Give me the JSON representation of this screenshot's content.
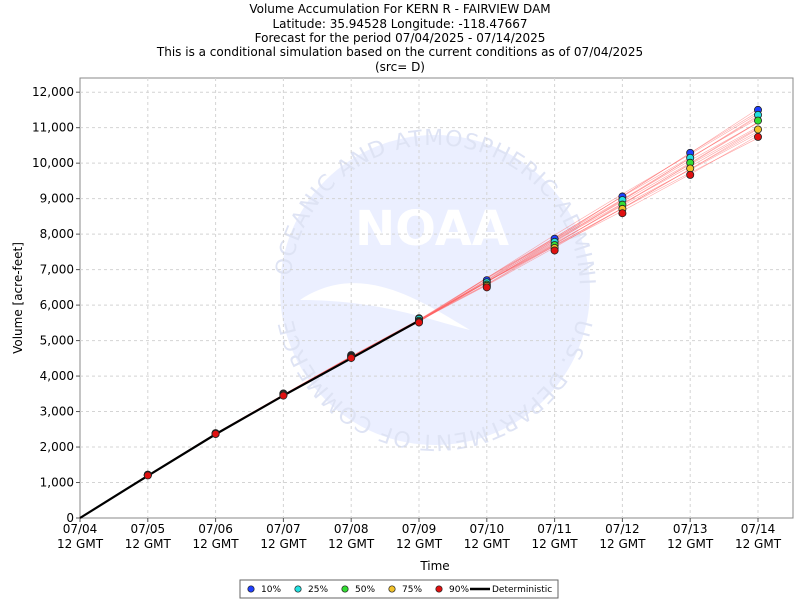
{
  "chart_data": {
    "type": "line",
    "title_lines": [
      "Volume Accumulation For KERN R - FAIRVIEW DAM",
      "Latitude: 35.94528 Longitude: -118.47667",
      "Forecast for the period 07/04/2025 - 07/14/2025",
      "This is a conditional simulation based on the current conditions as of 07/04/2025",
      "(src= D)"
    ],
    "xlabel": "Time",
    "ylabel": "Volume [acre-feet]",
    "ylim": [
      0,
      12400
    ],
    "yticks": [
      0,
      1000,
      2000,
      3000,
      4000,
      5000,
      6000,
      7000,
      8000,
      9000,
      10000,
      11000,
      12000
    ],
    "ytick_labels": [
      "0",
      "1,000",
      "2,000",
      "3,000",
      "4,000",
      "5,000",
      "6,000",
      "7,000",
      "8,000",
      "9,000",
      "10,000",
      "11,000",
      "12,000"
    ],
    "xticks": [
      {
        "date": "07/04",
        "time": "12 GMT"
      },
      {
        "date": "07/05",
        "time": "12 GMT"
      },
      {
        "date": "07/06",
        "time": "12 GMT"
      },
      {
        "date": "07/07",
        "time": "12 GMT"
      },
      {
        "date": "07/08",
        "time": "12 GMT"
      },
      {
        "date": "07/09",
        "time": "12 GMT"
      },
      {
        "date": "07/10",
        "time": "12 GMT"
      },
      {
        "date": "07/11",
        "time": "12 GMT"
      },
      {
        "date": "07/12",
        "time": "12 GMT"
      },
      {
        "date": "07/13",
        "time": "12 GMT"
      },
      {
        "date": "07/14",
        "time": "12 GMT"
      }
    ],
    "x": [
      "07/04 12 GMT",
      "07/05 12 GMT",
      "07/06 12 GMT",
      "07/07 12 GMT",
      "07/08 12 GMT",
      "07/09 12 GMT",
      "07/10 12 GMT",
      "07/11 12 GMT",
      "07/12 12 GMT",
      "07/13 12 GMT",
      "07/14 12 GMT"
    ],
    "grid": true,
    "legend_position": "bottom-center",
    "series": [
      {
        "name": "10%",
        "color": "#1f3fff",
        "marker": "circle",
        "values": [
          0,
          1220,
          2390,
          3510,
          4590,
          5630,
          6700,
          7870,
          9060,
          10290,
          11500
        ]
      },
      {
        "name": "25%",
        "color": "#22e0e0",
        "marker": "circle",
        "values": [
          0,
          1220,
          2390,
          3500,
          4570,
          5610,
          6640,
          7780,
          8960,
          10150,
          11360
        ]
      },
      {
        "name": "50%",
        "color": "#33dd33",
        "marker": "circle",
        "values": [
          0,
          1210,
          2380,
          3480,
          4550,
          5560,
          6580,
          7690,
          8830,
          10010,
          11200
        ]
      },
      {
        "name": "75%",
        "color": "#f2c22a",
        "marker": "circle",
        "values": [
          0,
          1210,
          2370,
          3470,
          4530,
          5530,
          6540,
          7610,
          8710,
          9850,
          10950
        ]
      },
      {
        "name": "90%",
        "color": "#e01010",
        "marker": "circle",
        "values": [
          0,
          1200,
          2370,
          3450,
          4510,
          5510,
          6500,
          7540,
          8590,
          9670,
          10740
        ]
      },
      {
        "name": "Deterministic",
        "color": "#000000",
        "marker": "none",
        "values": [
          0,
          1190,
          2360,
          3450,
          4500,
          5560,
          null,
          null,
          null,
          null,
          null
        ]
      }
    ],
    "ensemble_traces": {
      "color": "#ff6060",
      "start_values": [
        0,
        1200,
        2370,
        3460,
        4530,
        5560
      ],
      "end_values_range": [
        10740,
        11500
      ]
    },
    "watermark": {
      "logo_text": "NOAA",
      "arc_top": "NATIONAL OCEANIC AND ATMOSPHERIC ADMINISTRATION",
      "arc_bottom": "U.S. DEPARTMENT OF COMMERCE"
    }
  }
}
